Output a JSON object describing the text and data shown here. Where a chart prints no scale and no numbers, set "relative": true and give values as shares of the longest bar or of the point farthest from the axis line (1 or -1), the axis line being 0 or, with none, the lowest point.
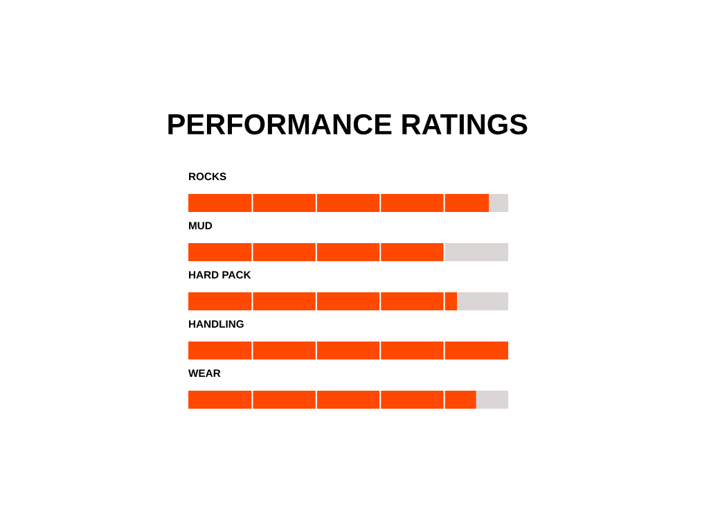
{
  "chart_data": {
    "type": "bar",
    "title": "PERFORMANCE RATINGS",
    "orientation": "horizontal",
    "stacked": true,
    "relative": true,
    "categories": [
      "ROCKS",
      "MUD",
      "HARD PACK",
      "HANDLING",
      "WEAR"
    ],
    "series": [
      {
        "color": "#ff4800",
        "values": [
          0.94,
          0.8,
          0.84,
          1.0,
          0.9
        ]
      },
      {
        "color": "#d9d6d5",
        "values": [
          0.06,
          0.2,
          0.16,
          0.0,
          0.1
        ]
      }
    ]
  }
}
